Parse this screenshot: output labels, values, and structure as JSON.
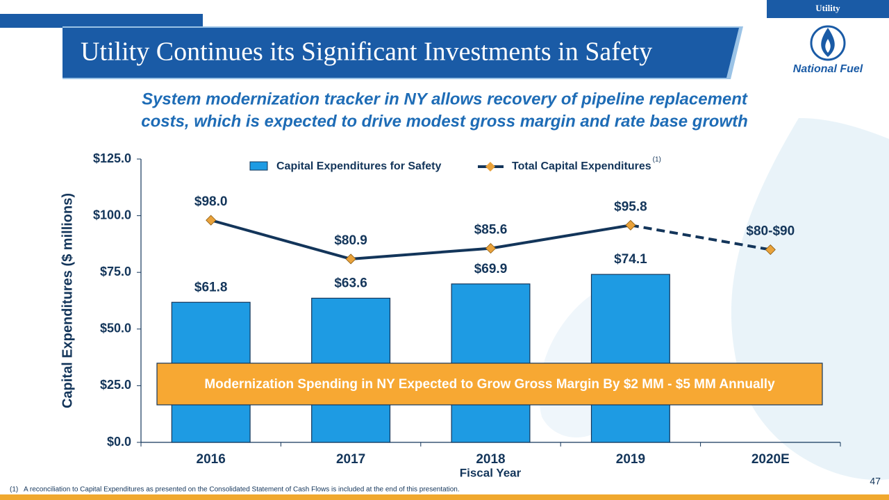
{
  "slide": {
    "section_tag": "Utility",
    "title": "Utility Continues its Significant Investments in Safety",
    "subtitle_lines": [
      "System modernization tracker in NY allows recovery of pipeline replacement",
      "costs, which is expected to drive modest gross margin and rate base growth"
    ],
    "logo": "National Fuel",
    "footnote_marker": "(1)",
    "footnote": "A reconciliation to Capital Expenditures as presented on the Consolidated Statement of Cash Flows is included at the end of this presentation.",
    "page_number": "47"
  },
  "chart_data": {
    "type": "bar_line",
    "ylabel": "Capital Expenditures ($ millions)",
    "xlabel": "Fiscal Year",
    "categories": [
      "2016",
      "2017",
      "2018",
      "2019",
      "2020E"
    ],
    "series": [
      {
        "name": "Capital Expenditures for Safety",
        "type": "bar",
        "color": "#1e9be3",
        "values": [
          61.8,
          63.6,
          69.9,
          74.1,
          null
        ],
        "value_labels": [
          "$61.8",
          "$63.6",
          "$69.9",
          "$74.1",
          null
        ]
      },
      {
        "name": "Total Capital Expenditures",
        "name_superscript": "(1)",
        "type": "line",
        "color": "#13355a",
        "marker_color": "#e9a23b",
        "values": [
          98.0,
          80.9,
          85.6,
          95.8,
          85
        ],
        "value_labels": [
          "$98.0",
          "$80.9",
          "$85.6",
          "$95.8",
          "$80-$90"
        ],
        "segment_styles": [
          "solid",
          "solid",
          "solid",
          "dashed"
        ]
      }
    ],
    "ylim": [
      0,
      125
    ],
    "yticks": [
      {
        "value": 0,
        "label": "$0.0"
      },
      {
        "value": 25,
        "label": "$25.0"
      },
      {
        "value": 50,
        "label": "$50.0"
      },
      {
        "value": 75,
        "label": "$75.0"
      },
      {
        "value": 100,
        "label": "$100.0"
      },
      {
        "value": 125,
        "label": "$125.0"
      }
    ],
    "annotation": "Modernization Spending in NY Expected to Grow Gross Margin By $2 MM - $5 MM Annually",
    "legend": "top"
  }
}
